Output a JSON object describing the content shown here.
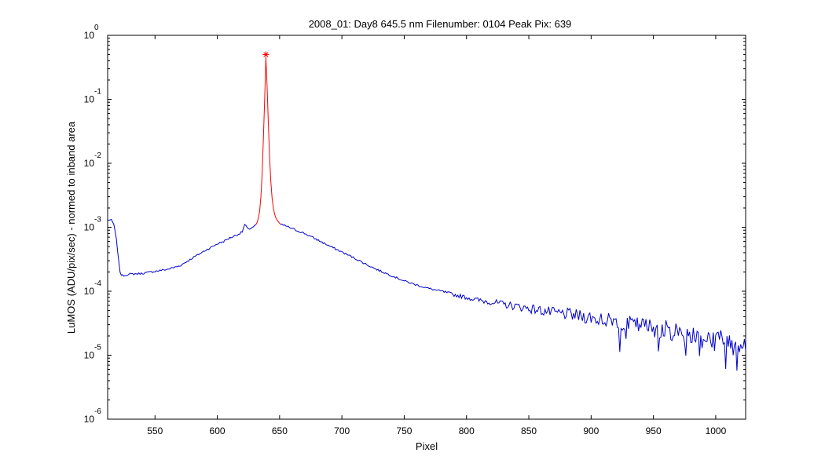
{
  "chart_data": {
    "type": "line",
    "title": "2008_01: Day8  645.5 nm  Filenumber: 0104 Peak Pix: 639",
    "xlabel": "Pixel",
    "ylabel": "LuMOS (ADU/pix/sec) - normed to inband area",
    "xlim": [
      512,
      1024
    ],
    "ylim": [
      1e-06,
      1
    ],
    "yscale": "log",
    "grid": false,
    "x_ticks": [
      550,
      600,
      650,
      700,
      750,
      800,
      850,
      900,
      950,
      1000
    ],
    "x_tick_labels": [
      "550",
      "600",
      "650",
      "700",
      "750",
      "800",
      "850",
      "900",
      "950",
      "1000"
    ],
    "y_ticks": [
      1e-06,
      1e-05,
      0.0001,
      0.001,
      0.01,
      0.1,
      1
    ],
    "y_tick_bases": [
      "10",
      "10",
      "10",
      "10",
      "10",
      "10",
      "10"
    ],
    "y_tick_exponents": [
      "-6",
      "-5",
      "-4",
      "-3",
      "-2",
      "-1",
      "0"
    ],
    "series": [
      {
        "color": "#0000cc",
        "x": [
          512,
          515,
          517,
          519,
          521,
          522,
          523,
          525,
          530,
          540,
          550,
          560,
          570,
          580,
          590,
          600,
          605,
          610,
          615,
          618,
          620,
          622,
          625,
          628,
          630,
          631,
          651,
          655,
          660,
          670,
          680,
          690,
          700,
          710,
          720,
          730,
          740,
          750,
          760,
          770,
          780,
          790,
          800,
          810,
          820,
          830,
          840,
          850,
          860,
          870,
          880,
          890,
          900,
          910,
          920,
          930,
          940,
          950,
          960,
          970,
          980,
          990,
          1000,
          1010,
          1020,
          1024
        ],
        "y": [
          0.0013,
          0.0013,
          0.0011,
          0.00065,
          0.00028,
          0.0002,
          0.00018,
          0.000175,
          0.000185,
          0.00019,
          0.000205,
          0.00022,
          0.00025,
          0.00033,
          0.00043,
          0.00055,
          0.0006,
          0.00068,
          0.00075,
          0.0008,
          0.00085,
          0.0011,
          0.00092,
          0.001,
          0.00105,
          0.0011,
          0.0011,
          0.00105,
          0.00095,
          0.0008,
          0.00064,
          0.00051,
          0.00041,
          0.00033,
          0.00026,
          0.00021,
          0.000175,
          0.000145,
          0.000125,
          0.00011,
          0.0001,
          8.8e-05,
          8e-05,
          7.2e-05,
          6.8e-05,
          6.2e-05,
          5.8e-05,
          5.4e-05,
          5e-05,
          4.6e-05,
          4.4e-05,
          4.1e-05,
          3.9e-05,
          3.6e-05,
          3.4e-05,
          3.1e-05,
          2.9e-05,
          2.7e-05,
          2.5e-05,
          2.3e-05,
          2.1e-05,
          1.9e-05,
          1.8e-05,
          1.6e-05,
          1.5e-05,
          1.5e-05
        ],
        "noise": true
      },
      {
        "color": "#ff0000",
        "x": [
          631,
          632,
          633,
          634,
          635,
          636,
          637,
          638,
          639,
          640,
          641,
          642,
          643,
          644,
          645,
          646,
          647,
          648,
          649,
          650,
          651
        ],
        "y": [
          0.0011,
          0.0012,
          0.0014,
          0.0018,
          0.003,
          0.007,
          0.025,
          0.1,
          0.45,
          0.15,
          0.04,
          0.012,
          0.005,
          0.0028,
          0.002,
          0.0016,
          0.0014,
          0.0013,
          0.00122,
          0.00115,
          0.0011
        ],
        "noise": false
      }
    ],
    "markers": [
      {
        "x": 639,
        "y": 0.5,
        "symbol": "*",
        "color": "#ff0000"
      }
    ]
  }
}
